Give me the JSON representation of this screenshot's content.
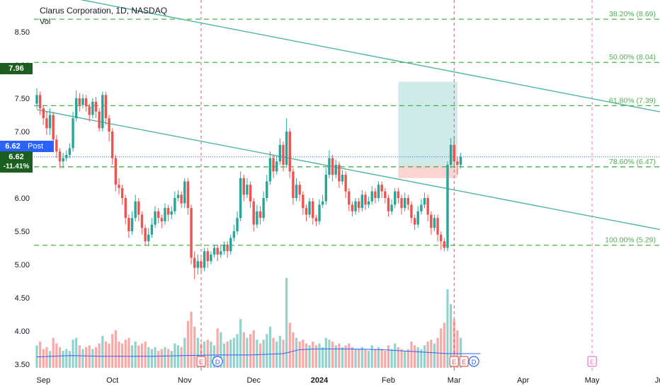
{
  "header": {
    "title": "Clarus Corporation, 1D, NASDAQ",
    "vol_label": "Vol"
  },
  "badges": {
    "high_price": "7.96",
    "last_price": "6.62",
    "post_tag": "Post",
    "close_price": "6.62",
    "change_pct": "-11.41%"
  },
  "colors": {
    "up": "#26a69a",
    "down": "#ef5350",
    "fib": "#4caf50",
    "trend": "#4db6a0",
    "volume_ma": "#2962ff"
  },
  "chart_data": {
    "type": "candlestick",
    "title": "Clarus Corporation, 1D, NASDAQ",
    "ylim": [
      3.45,
      8.95
    ],
    "y_ticks": [
      "8.50",
      "8.00",
      "7.50",
      "7.00",
      "6.50",
      "6.00",
      "5.50",
      "5.00",
      "4.50",
      "4.00",
      "3.50"
    ],
    "x_ticks": [
      {
        "label": "Sep",
        "t": 2
      },
      {
        "label": "Oct",
        "t": 23
      },
      {
        "label": "Nov",
        "t": 45
      },
      {
        "label": "Dec",
        "t": 66
      },
      {
        "label": "2024",
        "t": 86
      },
      {
        "label": "Feb",
        "t": 107
      },
      {
        "label": "Mar",
        "t": 127
      },
      {
        "label": "Apr",
        "t": 148
      },
      {
        "label": "May",
        "t": 169
      },
      {
        "label": "Jun",
        "t": 190
      }
    ],
    "fib_levels": [
      {
        "label": "38.20% (8.69)",
        "value": 8.69
      },
      {
        "label": "50.00% (8.04)",
        "value": 8.04
      },
      {
        "label": "61.80% (7.39)",
        "value": 7.39
      },
      {
        "label": "78.60% (6.47)",
        "value": 6.47
      },
      {
        "label": "100.00% (5.29)",
        "value": 5.29
      }
    ],
    "trendlines": [
      {
        "t1": -4,
        "p1": 9.15,
        "t2": 205,
        "p2": 7.15
      },
      {
        "t1": 0,
        "p1": 7.33,
        "t2": 205,
        "p2": 5.38
      }
    ],
    "event_lines": [
      50,
      127,
      169
    ],
    "events": [
      {
        "label": "E",
        "t": 50
      },
      {
        "label": "D",
        "t": 55
      },
      {
        "label": "E",
        "t": 127
      },
      {
        "label": "E",
        "t": 130
      },
      {
        "label": "D",
        "t": 133
      },
      {
        "label": "E",
        "t": 169
      }
    ],
    "position": {
      "t_start": 110,
      "t_end": 128,
      "entry": 6.49,
      "target": 7.75,
      "stop": 6.3
    },
    "volume_scale_max": 4.8,
    "candles": [
      [
        7.42,
        7.55,
        7.65,
        7.35,
        1.2
      ],
      [
        7.55,
        7.35,
        7.6,
        7.25,
        1.4
      ],
      [
        7.35,
        7.2,
        7.4,
        7.1,
        1.0
      ],
      [
        7.2,
        7.05,
        7.3,
        6.95,
        1.1
      ],
      [
        7.05,
        7.25,
        7.35,
        6.95,
        0.9
      ],
      [
        7.25,
        6.88,
        7.3,
        6.8,
        1.6
      ],
      [
        6.88,
        6.7,
        6.95,
        6.6,
        1.3
      ],
      [
        6.7,
        6.55,
        6.75,
        6.45,
        1.1
      ],
      [
        6.55,
        6.6,
        6.68,
        6.45,
        0.9
      ],
      [
        6.6,
        6.65,
        6.72,
        6.55,
        1.0
      ],
      [
        6.65,
        6.75,
        6.82,
        6.6,
        0.9
      ],
      [
        6.75,
        7.2,
        7.3,
        6.7,
        1.5
      ],
      [
        7.2,
        7.5,
        7.62,
        7.15,
        1.6
      ],
      [
        7.5,
        7.4,
        7.58,
        7.3,
        1.2
      ],
      [
        7.4,
        7.5,
        7.56,
        7.35,
        1.0
      ],
      [
        7.5,
        7.38,
        7.55,
        7.3,
        1.1
      ],
      [
        7.38,
        7.25,
        7.42,
        7.15,
        1.2
      ],
      [
        7.25,
        7.45,
        7.5,
        7.2,
        1.0
      ],
      [
        7.45,
        7.3,
        7.52,
        7.2,
        1.1
      ],
      [
        7.3,
        7.05,
        7.35,
        7.0,
        1.3
      ],
      [
        7.05,
        7.55,
        7.6,
        7.0,
        1.7
      ],
      [
        7.55,
        7.2,
        7.6,
        7.1,
        1.4
      ],
      [
        7.2,
        7.0,
        7.25,
        6.85,
        1.3
      ],
      [
        7.0,
        6.6,
        7.05,
        6.5,
        1.8
      ],
      [
        6.6,
        6.2,
        6.65,
        6.1,
        2.0
      ],
      [
        6.2,
        6.15,
        6.3,
        6.05,
        1.4
      ],
      [
        6.15,
        6.0,
        6.2,
        5.9,
        1.3
      ],
      [
        6.0,
        5.7,
        6.05,
        5.6,
        1.5
      ],
      [
        5.7,
        5.5,
        5.75,
        5.4,
        1.6
      ],
      [
        5.5,
        5.7,
        5.8,
        5.45,
        1.2
      ],
      [
        5.7,
        5.95,
        6.05,
        5.65,
        1.4
      ],
      [
        5.95,
        5.75,
        6.0,
        5.65,
        1.2
      ],
      [
        5.75,
        5.55,
        5.8,
        5.45,
        1.3
      ],
      [
        5.55,
        5.35,
        5.6,
        5.28,
        1.4
      ],
      [
        5.35,
        5.45,
        5.55,
        5.28,
        1.1
      ],
      [
        5.45,
        5.6,
        5.7,
        5.4,
        1.0
      ],
      [
        5.6,
        5.8,
        5.88,
        5.55,
        1.1
      ],
      [
        5.8,
        5.7,
        5.85,
        5.62,
        0.9
      ],
      [
        5.7,
        5.65,
        5.75,
        5.55,
        1.0
      ],
      [
        5.65,
        5.85,
        5.92,
        5.6,
        1.1
      ],
      [
        5.85,
        5.75,
        5.9,
        5.65,
        1.0
      ],
      [
        5.75,
        5.8,
        5.88,
        5.68,
        0.9
      ],
      [
        5.8,
        6.0,
        6.1,
        5.75,
        1.3
      ],
      [
        6.0,
        6.05,
        6.12,
        5.95,
        1.2
      ],
      [
        6.05,
        5.92,
        6.1,
        5.85,
        1.1
      ],
      [
        5.92,
        6.25,
        6.3,
        5.85,
        1.6
      ],
      [
        6.25,
        5.85,
        6.3,
        5.75,
        2.5
      ],
      [
        5.85,
        5.1,
        5.9,
        5.0,
        3.0
      ],
      [
        5.1,
        4.95,
        5.2,
        4.78,
        2.2
      ],
      [
        4.95,
        5.05,
        5.15,
        4.85,
        1.6
      ],
      [
        5.05,
        4.95,
        5.1,
        4.85,
        1.3
      ],
      [
        4.95,
        5.2,
        5.25,
        4.9,
        1.4
      ],
      [
        5.2,
        5.05,
        5.25,
        4.95,
        1.5
      ],
      [
        5.05,
        5.15,
        5.2,
        5.0,
        1.4
      ],
      [
        5.15,
        5.25,
        5.3,
        5.1,
        1.2
      ],
      [
        5.25,
        5.15,
        5.3,
        5.05,
        2.1
      ],
      [
        5.15,
        5.2,
        5.3,
        5.1,
        1.9
      ],
      [
        5.2,
        5.3,
        5.35,
        5.15,
        1.3
      ],
      [
        5.3,
        5.2,
        5.35,
        5.1,
        1.4
      ],
      [
        5.2,
        5.4,
        5.45,
        5.15,
        1.5
      ],
      [
        5.4,
        5.5,
        5.6,
        5.35,
        1.6
      ],
      [
        5.5,
        5.7,
        5.8,
        5.45,
        1.8
      ],
      [
        5.7,
        6.3,
        6.4,
        5.65,
        2.6
      ],
      [
        6.3,
        6.05,
        6.35,
        5.95,
        1.9
      ],
      [
        6.05,
        6.2,
        6.3,
        6.0,
        1.6
      ],
      [
        6.2,
        5.95,
        6.25,
        5.85,
        1.8
      ],
      [
        5.95,
        5.6,
        6.0,
        5.5,
        2.0
      ],
      [
        5.6,
        5.8,
        5.9,
        5.55,
        1.5
      ],
      [
        5.8,
        5.7,
        5.88,
        5.6,
        1.3
      ],
      [
        5.7,
        6.0,
        6.1,
        5.65,
        1.5
      ],
      [
        6.0,
        6.25,
        6.35,
        5.95,
        1.8
      ],
      [
        6.25,
        6.6,
        6.7,
        6.2,
        2.2
      ],
      [
        6.6,
        6.4,
        6.65,
        6.3,
        1.6
      ],
      [
        6.4,
        6.55,
        6.62,
        6.35,
        1.4
      ],
      [
        6.55,
        6.8,
        6.9,
        6.5,
        1.7
      ],
      [
        6.8,
        6.5,
        6.85,
        6.4,
        1.5
      ],
      [
        6.5,
        7.0,
        7.2,
        6.45,
        4.8
      ],
      [
        7.0,
        6.4,
        7.05,
        6.3,
        2.4
      ],
      [
        6.4,
        6.0,
        6.45,
        5.9,
        1.9
      ],
      [
        6.0,
        6.2,
        6.3,
        5.95,
        1.6
      ],
      [
        6.2,
        6.05,
        6.25,
        5.95,
        1.4
      ],
      [
        6.05,
        5.85,
        6.1,
        5.75,
        1.5
      ],
      [
        5.85,
        5.75,
        5.9,
        5.65,
        1.3
      ],
      [
        5.75,
        5.95,
        6.0,
        5.7,
        1.2
      ],
      [
        5.95,
        5.7,
        6.0,
        5.6,
        1.4
      ],
      [
        5.7,
        5.65,
        5.75,
        5.58,
        1.2
      ],
      [
        5.65,
        5.9,
        5.98,
        5.6,
        1.3
      ],
      [
        5.9,
        5.95,
        6.05,
        5.85,
        1.1
      ],
      [
        5.95,
        6.35,
        6.45,
        5.9,
        1.6
      ],
      [
        6.35,
        6.6,
        6.72,
        6.3,
        1.5
      ],
      [
        6.6,
        6.35,
        6.65,
        6.25,
        1.4
      ],
      [
        6.35,
        6.5,
        6.58,
        6.3,
        1.2
      ],
      [
        6.5,
        6.25,
        6.55,
        6.15,
        1.3
      ],
      [
        6.25,
        6.35,
        6.42,
        6.2,
        1.1
      ],
      [
        6.35,
        6.1,
        6.4,
        6.0,
        1.2
      ],
      [
        6.1,
        5.9,
        6.15,
        5.8,
        1.3
      ],
      [
        5.9,
        5.8,
        5.95,
        5.72,
        1.1
      ],
      [
        5.8,
        5.95,
        6.0,
        5.75,
        1.0
      ],
      [
        5.95,
        5.85,
        6.0,
        5.78,
        1.0
      ],
      [
        5.85,
        6.05,
        6.12,
        5.8,
        1.1
      ],
      [
        6.05,
        5.9,
        6.1,
        5.82,
        1.0
      ],
      [
        5.9,
        5.95,
        6.02,
        5.85,
        0.9
      ],
      [
        5.95,
        6.1,
        6.18,
        5.9,
        1.2
      ],
      [
        6.1,
        6.0,
        6.15,
        5.92,
        1.0
      ],
      [
        6.0,
        6.2,
        6.25,
        5.95,
        1.1
      ],
      [
        6.2,
        6.1,
        6.25,
        6.0,
        1.0
      ],
      [
        6.1,
        6.0,
        6.15,
        5.92,
        0.9
      ],
      [
        6.0,
        5.8,
        6.05,
        5.72,
        1.2
      ],
      [
        5.8,
        5.9,
        5.98,
        5.75,
        1.0
      ],
      [
        5.9,
        6.1,
        6.15,
        5.85,
        1.3
      ],
      [
        6.1,
        6.0,
        6.15,
        5.92,
        1.1
      ],
      [
        6.0,
        5.85,
        6.05,
        5.75,
        1.0
      ],
      [
        5.85,
        6.0,
        6.08,
        5.8,
        0.9
      ],
      [
        6.0,
        5.9,
        6.05,
        5.82,
        1.0
      ],
      [
        5.9,
        5.7,
        5.95,
        5.62,
        1.4
      ],
      [
        5.7,
        5.6,
        5.75,
        5.52,
        1.2
      ],
      [
        5.6,
        5.8,
        5.88,
        5.55,
        1.1
      ],
      [
        5.8,
        5.9,
        5.98,
        5.75,
        1.0
      ],
      [
        5.9,
        6.0,
        6.08,
        5.85,
        1.2
      ],
      [
        6.0,
        5.75,
        6.05,
        5.65,
        1.4
      ],
      [
        5.75,
        5.55,
        5.8,
        5.45,
        1.5
      ],
      [
        5.55,
        5.7,
        5.75,
        5.5,
        1.3
      ],
      [
        5.7,
        5.45,
        5.75,
        5.35,
        1.6
      ],
      [
        5.45,
        5.35,
        5.5,
        5.22,
        2.1
      ],
      [
        5.35,
        5.25,
        5.4,
        5.2,
        2.4
      ],
      [
        5.25,
        6.5,
        6.55,
        5.2,
        4.2
      ],
      [
        6.5,
        6.8,
        6.9,
        6.45,
        3.4
      ],
      [
        6.8,
        6.55,
        6.92,
        6.45,
        2.6
      ],
      [
        6.55,
        6.5,
        6.62,
        6.35,
        2.0
      ],
      [
        6.5,
        6.62,
        6.68,
        6.45,
        1.6
      ]
    ],
    "volume_ma": [
      [
        0,
        3.61
      ],
      [
        10,
        3.63
      ],
      [
        20,
        3.62
      ],
      [
        35,
        3.62
      ],
      [
        45,
        3.63
      ],
      [
        55,
        3.64
      ],
      [
        65,
        3.64
      ],
      [
        75,
        3.66
      ],
      [
        80,
        3.72
      ],
      [
        85,
        3.73
      ],
      [
        95,
        3.73
      ],
      [
        105,
        3.72
      ],
      [
        115,
        3.69
      ],
      [
        125,
        3.66
      ],
      [
        135,
        3.66
      ]
    ]
  }
}
